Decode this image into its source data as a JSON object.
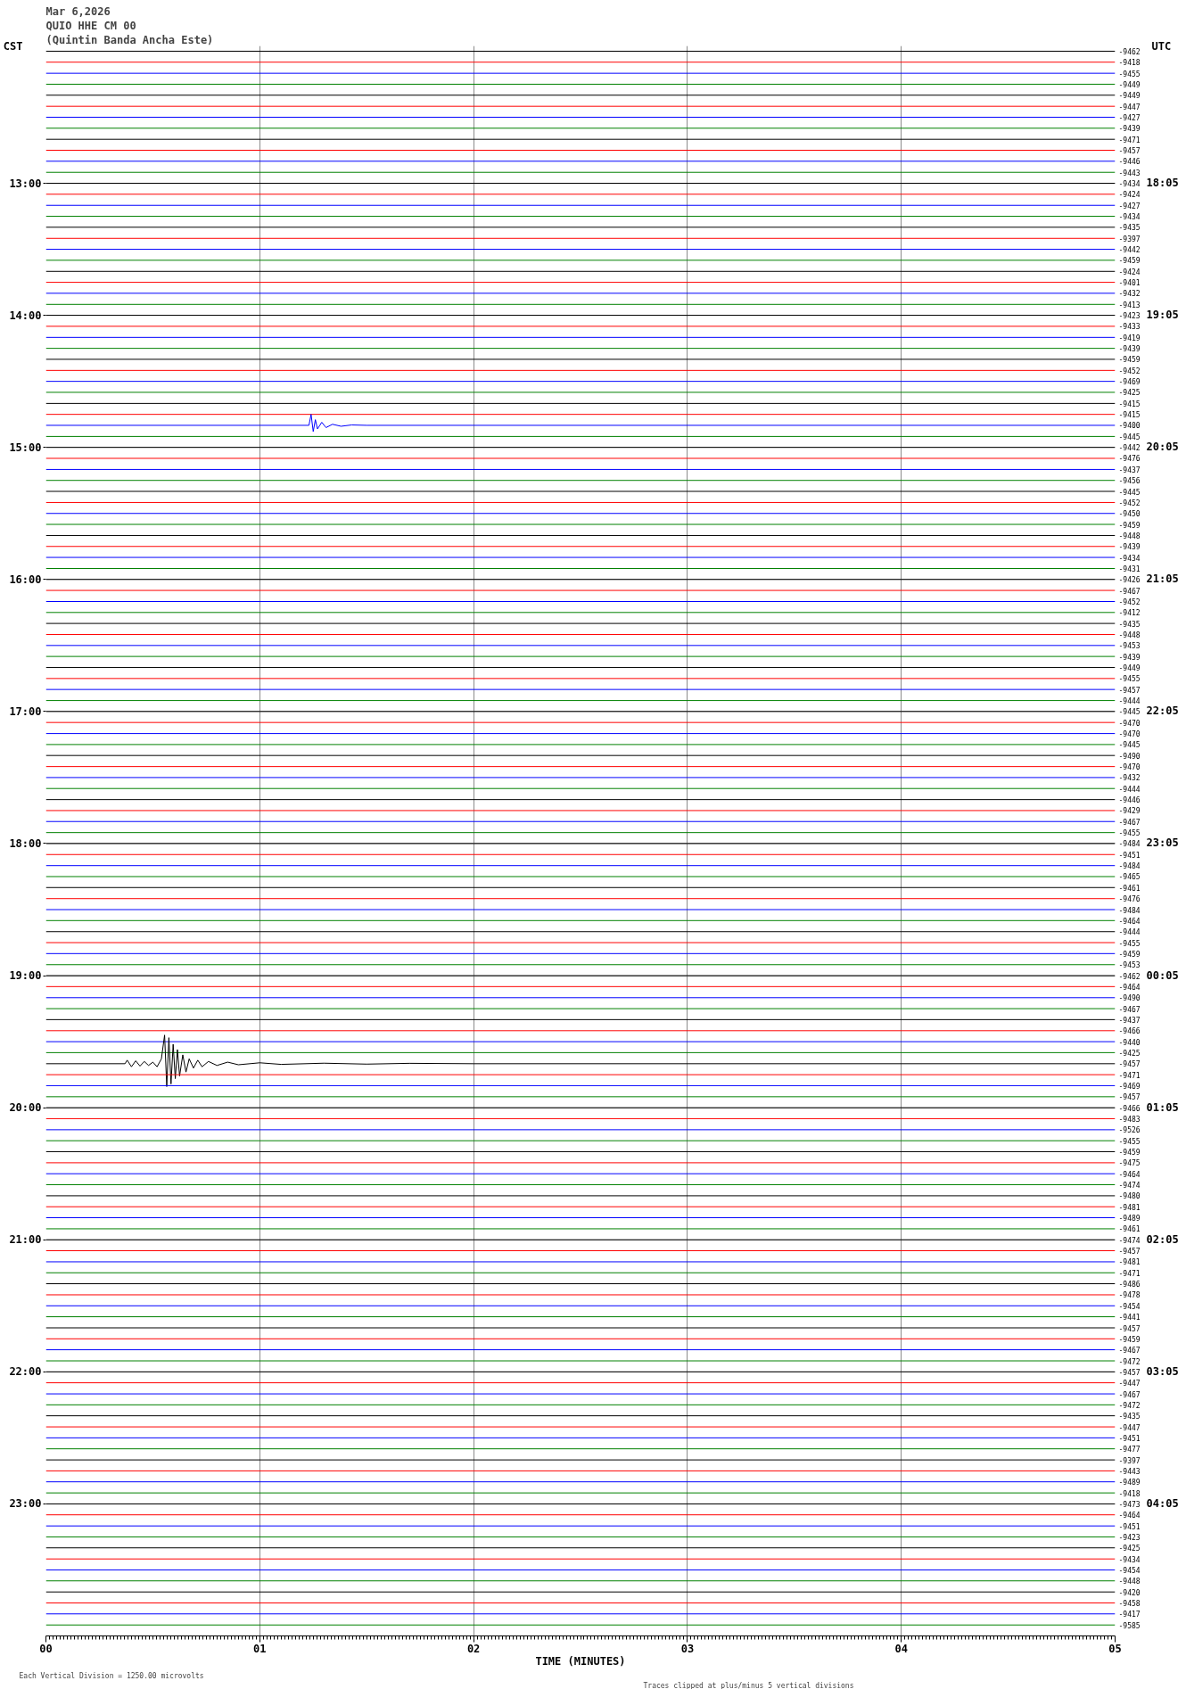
{
  "chart_data": {
    "type": "line",
    "title": "Mar 6,2026",
    "subtitle": "QUIO HHE CM 00",
    "xlabel": "TIME (MINUTES)",
    "ylabel": "CST",
    "y2label": "UTC",
    "annotations": [
      "(Quintin Banda Ancha Este)",
      "Each Vertical Division = 1250.00 microvolts",
      "Traces clipped at plus/minus 5 vertical divisions"
    ],
    "x": [
      0,
      5
    ],
    "xlim": [
      0,
      5
    ],
    "xticks": [
      {
        "value": 0,
        "label": "00"
      },
      {
        "value": 1,
        "label": "01"
      },
      {
        "value": 2,
        "label": "02"
      },
      {
        "value": 3,
        "label": "03"
      },
      {
        "value": 4,
        "label": "04"
      },
      {
        "value": 5,
        "label": "05"
      }
    ],
    "ylim": [
      24.0,
      11.96
    ],
    "yticks": [
      {
        "value": 13,
        "label": "13:00"
      },
      {
        "value": 14,
        "label": "14:00"
      },
      {
        "value": 15,
        "label": "15:00"
      },
      {
        "value": 16,
        "label": "16:00"
      },
      {
        "value": 17,
        "label": "17:00"
      },
      {
        "value": 18,
        "label": "18:00"
      },
      {
        "value": 19,
        "label": "19:00"
      },
      {
        "value": 20,
        "label": "20:00"
      },
      {
        "value": 21,
        "label": "21:00"
      },
      {
        "value": 22,
        "label": "22:00"
      },
      {
        "value": 23,
        "label": "23:00"
      }
    ],
    "y2lim": [
      "2026-03-07T05:05",
      "2026-03-06T17:03"
    ],
    "y2ticks": [
      {
        "value": "2026-03-06T18:05",
        "label": "18:05"
      },
      {
        "value": "2026-03-06T19:05",
        "label": "19:05"
      },
      {
        "value": "2026-03-06T20:05",
        "label": "20:05"
      },
      {
        "value": "2026-03-06T21:05",
        "label": "21:05"
      },
      {
        "value": "2026-03-06T22:05",
        "label": "22:05"
      },
      {
        "value": "2026-03-06T23:05",
        "label": "23:05"
      },
      {
        "value": "2026-03-07T00:05",
        "label": "00:05"
      },
      {
        "value": "2026-03-07T01:05",
        "label": "01:05"
      },
      {
        "value": "2026-03-07T02:05",
        "label": "02:05"
      },
      {
        "value": "2026-03-07T03:05",
        "label": "03:05"
      },
      {
        "value": "2026-03-07T04:05",
        "label": "04:05"
      }
    ],
    "grid": true,
    "series": [
      {
        "name": "-9462",
        "color": "#000000",
        "values": [
          12.0,
          12.0
        ]
      },
      {
        "name": "-9418",
        "color": "#ff0000",
        "values": [
          12.083,
          12.083
        ]
      },
      {
        "name": "-9455",
        "color": "#0000ff",
        "values": [
          12.167,
          12.167
        ]
      },
      {
        "name": "-9449",
        "color": "#008000",
        "values": [
          12.25,
          12.25
        ]
      },
      {
        "name": "-9449",
        "color": "#000000",
        "values": [
          12.333,
          12.333
        ]
      },
      {
        "name": "-9447",
        "color": "#ff0000",
        "values": [
          12.417,
          12.417
        ]
      },
      {
        "name": "-9427",
        "color": "#0000ff",
        "values": [
          12.5,
          12.5
        ]
      },
      {
        "name": "-9439",
        "color": "#008000",
        "values": [
          12.583,
          12.583
        ]
      },
      {
        "name": "-9471",
        "color": "#000000",
        "values": [
          12.667,
          12.667
        ]
      },
      {
        "name": "-9457",
        "color": "#ff0000",
        "values": [
          12.75,
          12.75
        ]
      },
      {
        "name": "-9446",
        "color": "#0000ff",
        "values": [
          12.833,
          12.833
        ]
      },
      {
        "name": "-9443",
        "color": "#008000",
        "values": [
          12.917,
          12.917
        ]
      },
      {
        "name": "-9434",
        "color": "#000000",
        "values": [
          13.0,
          13.0
        ]
      },
      {
        "name": "-9424",
        "color": "#ff0000",
        "values": [
          13.083,
          13.083
        ]
      },
      {
        "name": "-9427",
        "color": "#0000ff",
        "values": [
          13.167,
          13.167
        ]
      },
      {
        "name": "-9434",
        "color": "#008000",
        "values": [
          13.25,
          13.25
        ]
      },
      {
        "name": "-9435",
        "color": "#000000",
        "values": [
          13.333,
          13.333
        ]
      },
      {
        "name": "-9397",
        "color": "#ff0000",
        "values": [
          13.417,
          13.417
        ]
      },
      {
        "name": "-9442",
        "color": "#0000ff",
        "values": [
          13.5,
          13.5
        ]
      },
      {
        "name": "-9459",
        "color": "#008000",
        "values": [
          13.583,
          13.583
        ]
      },
      {
        "name": "-9424",
        "color": "#000000",
        "values": [
          13.667,
          13.667
        ]
      },
      {
        "name": "-9401",
        "color": "#ff0000",
        "values": [
          13.75,
          13.75
        ]
      },
      {
        "name": "-9432",
        "color": "#0000ff",
        "values": [
          13.833,
          13.833
        ]
      },
      {
        "name": "-9413",
        "color": "#008000",
        "values": [
          13.917,
          13.917
        ]
      },
      {
        "name": "-9423",
        "color": "#000000",
        "values": [
          14.0,
          14.0
        ]
      },
      {
        "name": "-9433",
        "color": "#ff0000",
        "values": [
          14.083,
          14.083
        ]
      },
      {
        "name": "-9419",
        "color": "#0000ff",
        "values": [
          14.167,
          14.167
        ]
      },
      {
        "name": "-9439",
        "color": "#008000",
        "values": [
          14.25,
          14.25
        ]
      },
      {
        "name": "-9459",
        "color": "#000000",
        "values": [
          14.333,
          14.333
        ]
      },
      {
        "name": "-9452",
        "color": "#ff0000",
        "values": [
          14.417,
          14.417
        ]
      },
      {
        "name": "-9469",
        "color": "#0000ff",
        "values": [
          14.5,
          14.5
        ]
      },
      {
        "name": "-9425",
        "color": "#008000",
        "values": [
          14.583,
          14.583
        ]
      },
      {
        "name": "-9415",
        "color": "#000000",
        "values": [
          14.667,
          14.667
        ]
      },
      {
        "name": "-9415",
        "color": "#ff0000",
        "values": [
          14.75,
          14.75
        ]
      },
      {
        "name": "-9400",
        "color": "#0000ff",
        "x": [
          0,
          1.23,
          1.24,
          1.25,
          1.26,
          1.27,
          1.29,
          1.31,
          1.34,
          1.38,
          1.43,
          1.5,
          5
        ],
        "values": [
          14.833,
          14.833,
          14.75,
          14.88,
          14.79,
          14.86,
          14.81,
          14.85,
          14.825,
          14.84,
          14.83,
          14.833,
          14.833
        ]
      },
      {
        "name": "-9445",
        "color": "#008000",
        "values": [
          14.917,
          14.917
        ]
      },
      {
        "name": "-9442",
        "color": "#000000",
        "values": [
          15.0,
          15.0
        ]
      },
      {
        "name": "-9476",
        "color": "#ff0000",
        "values": [
          15.083,
          15.083
        ]
      },
      {
        "name": "-9437",
        "color": "#0000ff",
        "values": [
          15.167,
          15.167
        ]
      },
      {
        "name": "-9456",
        "color": "#008000",
        "values": [
          15.25,
          15.25
        ]
      },
      {
        "name": "-9445",
        "color": "#000000",
        "values": [
          15.333,
          15.333
        ]
      },
      {
        "name": "-9452",
        "color": "#ff0000",
        "values": [
          15.417,
          15.417
        ]
      },
      {
        "name": "-9450",
        "color": "#0000ff",
        "values": [
          15.5,
          15.5
        ]
      },
      {
        "name": "-9459",
        "color": "#008000",
        "values": [
          15.583,
          15.583
        ]
      },
      {
        "name": "-9448",
        "color": "#000000",
        "values": [
          15.667,
          15.667
        ]
      },
      {
        "name": "-9439",
        "color": "#ff0000",
        "values": [
          15.75,
          15.75
        ]
      },
      {
        "name": "-9434",
        "color": "#0000ff",
        "values": [
          15.833,
          15.833
        ]
      },
      {
        "name": "-9431",
        "color": "#008000",
        "values": [
          15.917,
          15.917
        ]
      },
      {
        "name": "-9426",
        "color": "#000000",
        "values": [
          16.0,
          16.0
        ]
      },
      {
        "name": "-9467",
        "color": "#ff0000",
        "values": [
          16.083,
          16.083
        ]
      },
      {
        "name": "-9452",
        "color": "#0000ff",
        "values": [
          16.167,
          16.167
        ]
      },
      {
        "name": "-9412",
        "color": "#008000",
        "values": [
          16.25,
          16.25
        ]
      },
      {
        "name": "-9435",
        "color": "#000000",
        "values": [
          16.333,
          16.333
        ]
      },
      {
        "name": "-9448",
        "color": "#ff0000",
        "values": [
          16.417,
          16.417
        ]
      },
      {
        "name": "-9453",
        "color": "#0000ff",
        "values": [
          16.5,
          16.5
        ]
      },
      {
        "name": "-9439",
        "color": "#008000",
        "values": [
          16.583,
          16.583
        ]
      },
      {
        "name": "-9449",
        "color": "#000000",
        "values": [
          16.667,
          16.667
        ]
      },
      {
        "name": "-9455",
        "color": "#ff0000",
        "values": [
          16.75,
          16.75
        ]
      },
      {
        "name": "-9457",
        "color": "#0000ff",
        "values": [
          16.833,
          16.833
        ]
      },
      {
        "name": "-9444",
        "color": "#008000",
        "values": [
          16.917,
          16.917
        ]
      },
      {
        "name": "-9445",
        "color": "#000000",
        "values": [
          17.0,
          17.0
        ]
      },
      {
        "name": "-9470",
        "color": "#ff0000",
        "values": [
          17.083,
          17.083
        ]
      },
      {
        "name": "-9470",
        "color": "#0000ff",
        "values": [
          17.167,
          17.167
        ]
      },
      {
        "name": "-9445",
        "color": "#008000",
        "values": [
          17.25,
          17.25
        ]
      },
      {
        "name": "-9490",
        "color": "#000000",
        "values": [
          17.333,
          17.333
        ]
      },
      {
        "name": "-9470",
        "color": "#ff0000",
        "values": [
          17.417,
          17.417
        ]
      },
      {
        "name": "-9432",
        "color": "#0000ff",
        "values": [
          17.5,
          17.5
        ]
      },
      {
        "name": "-9444",
        "color": "#008000",
        "values": [
          17.583,
          17.583
        ]
      },
      {
        "name": "-9446",
        "color": "#000000",
        "values": [
          17.667,
          17.667
        ]
      },
      {
        "name": "-9429",
        "color": "#ff0000",
        "values": [
          17.75,
          17.75
        ]
      },
      {
        "name": "-9467",
        "color": "#0000ff",
        "values": [
          17.833,
          17.833
        ]
      },
      {
        "name": "-9455",
        "color": "#008000",
        "values": [
          17.917,
          17.917
        ]
      },
      {
        "name": "-9484",
        "color": "#000000",
        "values": [
          18.0,
          18.0
        ]
      },
      {
        "name": "-9451",
        "color": "#ff0000",
        "values": [
          18.083,
          18.083
        ]
      },
      {
        "name": "-9484",
        "color": "#0000ff",
        "values": [
          18.167,
          18.167
        ]
      },
      {
        "name": "-9465",
        "color": "#008000",
        "values": [
          18.25,
          18.25
        ]
      },
      {
        "name": "-9461",
        "color": "#000000",
        "values": [
          18.333,
          18.333
        ]
      },
      {
        "name": "-9476",
        "color": "#ff0000",
        "values": [
          18.417,
          18.417
        ]
      },
      {
        "name": "-9484",
        "color": "#0000ff",
        "values": [
          18.5,
          18.5
        ]
      },
      {
        "name": "-9464",
        "color": "#008000",
        "values": [
          18.583,
          18.583
        ]
      },
      {
        "name": "-9444",
        "color": "#000000",
        "values": [
          18.667,
          18.667
        ]
      },
      {
        "name": "-9455",
        "color": "#ff0000",
        "values": [
          18.75,
          18.75
        ]
      },
      {
        "name": "-9459",
        "color": "#0000ff",
        "values": [
          18.833,
          18.833
        ]
      },
      {
        "name": "-9453",
        "color": "#008000",
        "values": [
          18.917,
          18.917
        ]
      },
      {
        "name": "-9462",
        "color": "#000000",
        "values": [
          19.0,
          19.0
        ]
      },
      {
        "name": "-9464",
        "color": "#ff0000",
        "values": [
          19.083,
          19.083
        ]
      },
      {
        "name": "-9490",
        "color": "#0000ff",
        "values": [
          19.167,
          19.167
        ]
      },
      {
        "name": "-9467",
        "color": "#008000",
        "values": [
          19.25,
          19.25
        ]
      },
      {
        "name": "-9437",
        "color": "#000000",
        "values": [
          19.333,
          19.333
        ]
      },
      {
        "name": "-9466",
        "color": "#ff0000",
        "values": [
          19.417,
          19.417
        ]
      },
      {
        "name": "-9440",
        "color": "#0000ff",
        "values": [
          19.5,
          19.5
        ]
      },
      {
        "name": "-9425",
        "color": "#008000",
        "values": [
          19.583,
          19.583
        ]
      },
      {
        "name": "-9457",
        "color": "#000000",
        "x": [
          0,
          0.37,
          0.38,
          0.4,
          0.42,
          0.44,
          0.46,
          0.48,
          0.5,
          0.52,
          0.54,
          0.555,
          0.565,
          0.575,
          0.585,
          0.595,
          0.605,
          0.615,
          0.625,
          0.64,
          0.655,
          0.67,
          0.69,
          0.71,
          0.73,
          0.76,
          0.8,
          0.85,
          0.9,
          1.0,
          1.1,
          1.3,
          1.5,
          1.7,
          2.0,
          5
        ],
        "values": [
          19.667,
          19.667,
          19.64,
          19.69,
          19.645,
          19.685,
          19.65,
          19.68,
          19.655,
          19.69,
          19.63,
          19.45,
          19.84,
          19.47,
          19.82,
          19.52,
          19.78,
          19.56,
          19.76,
          19.6,
          19.73,
          19.63,
          19.7,
          19.64,
          19.69,
          19.65,
          19.68,
          19.655,
          19.675,
          19.66,
          19.672,
          19.663,
          19.67,
          19.664,
          19.667,
          19.667
        ]
      },
      {
        "name": "-9471",
        "color": "#ff0000",
        "values": [
          19.75,
          19.75
        ]
      },
      {
        "name": "-9469",
        "color": "#0000ff",
        "values": [
          19.833,
          19.833
        ]
      },
      {
        "name": "-9457",
        "color": "#008000",
        "values": [
          19.917,
          19.917
        ]
      },
      {
        "name": "-9466",
        "color": "#000000",
        "values": [
          20.0,
          20.0
        ]
      },
      {
        "name": "-9483",
        "color": "#ff0000",
        "values": [
          20.083,
          20.083
        ]
      },
      {
        "name": "-9526",
        "color": "#0000ff",
        "values": [
          20.167,
          20.167
        ]
      },
      {
        "name": "-9455",
        "color": "#008000",
        "values": [
          20.25,
          20.25
        ]
      },
      {
        "name": "-9459",
        "color": "#000000",
        "values": [
          20.333,
          20.333
        ]
      },
      {
        "name": "-9475",
        "color": "#ff0000",
        "values": [
          20.417,
          20.417
        ]
      },
      {
        "name": "-9464",
        "color": "#0000ff",
        "values": [
          20.5,
          20.5
        ]
      },
      {
        "name": "-9474",
        "color": "#008000",
        "values": [
          20.583,
          20.583
        ]
      },
      {
        "name": "-9480",
        "color": "#000000",
        "values": [
          20.667,
          20.667
        ]
      },
      {
        "name": "-9481",
        "color": "#ff0000",
        "values": [
          20.75,
          20.75
        ]
      },
      {
        "name": "-9489",
        "color": "#0000ff",
        "values": [
          20.833,
          20.833
        ]
      },
      {
        "name": "-9461",
        "color": "#008000",
        "values": [
          20.917,
          20.917
        ]
      },
      {
        "name": "-9474",
        "color": "#000000",
        "values": [
          21.0,
          21.0
        ]
      },
      {
        "name": "-9457",
        "color": "#ff0000",
        "values": [
          21.083,
          21.083
        ]
      },
      {
        "name": "-9481",
        "color": "#0000ff",
        "values": [
          21.167,
          21.167
        ]
      },
      {
        "name": "-9471",
        "color": "#008000",
        "values": [
          21.25,
          21.25
        ]
      },
      {
        "name": "-9486",
        "color": "#000000",
        "values": [
          21.333,
          21.333
        ]
      },
      {
        "name": "-9478",
        "color": "#ff0000",
        "values": [
          21.417,
          21.417
        ]
      },
      {
        "name": "-9454",
        "color": "#0000ff",
        "values": [
          21.5,
          21.5
        ]
      },
      {
        "name": "-9441",
        "color": "#008000",
        "values": [
          21.583,
          21.583
        ]
      },
      {
        "name": "-9457",
        "color": "#000000",
        "values": [
          21.667,
          21.667
        ]
      },
      {
        "name": "-9459",
        "color": "#ff0000",
        "values": [
          21.75,
          21.75
        ]
      },
      {
        "name": "-9467",
        "color": "#0000ff",
        "values": [
          21.833,
          21.833
        ]
      },
      {
        "name": "-9472",
        "color": "#008000",
        "values": [
          21.917,
          21.917
        ]
      },
      {
        "name": "-9457",
        "color": "#000000",
        "values": [
          22.0,
          22.0
        ]
      },
      {
        "name": "-9447",
        "color": "#ff0000",
        "values": [
          22.083,
          22.083
        ]
      },
      {
        "name": "-9467",
        "color": "#0000ff",
        "values": [
          22.167,
          22.167
        ]
      },
      {
        "name": "-9472",
        "color": "#008000",
        "values": [
          22.25,
          22.25
        ]
      },
      {
        "name": "-9435",
        "color": "#000000",
        "values": [
          22.333,
          22.333
        ]
      },
      {
        "name": "-9447",
        "color": "#ff0000",
        "values": [
          22.417,
          22.417
        ]
      },
      {
        "name": "-9451",
        "color": "#0000ff",
        "values": [
          22.5,
          22.5
        ]
      },
      {
        "name": "-9477",
        "color": "#008000",
        "values": [
          22.583,
          22.583
        ]
      },
      {
        "name": "-9397",
        "color": "#000000",
        "values": [
          22.667,
          22.667
        ]
      },
      {
        "name": "-9443",
        "color": "#ff0000",
        "values": [
          22.75,
          22.75
        ]
      },
      {
        "name": "-9489",
        "color": "#0000ff",
        "values": [
          22.833,
          22.833
        ]
      },
      {
        "name": "-9418",
        "color": "#008000",
        "values": [
          22.917,
          22.917
        ]
      },
      {
        "name": "-9473",
        "color": "#000000",
        "values": [
          23.0,
          23.0
        ]
      },
      {
        "name": "-9464",
        "color": "#ff0000",
        "values": [
          23.083,
          23.083
        ]
      },
      {
        "name": "-9451",
        "color": "#0000ff",
        "values": [
          23.167,
          23.167
        ]
      },
      {
        "name": "-9423",
        "color": "#008000",
        "values": [
          23.25,
          23.25
        ]
      },
      {
        "name": "-9425",
        "color": "#000000",
        "values": [
          23.333,
          23.333
        ]
      },
      {
        "name": "-9434",
        "color": "#ff0000",
        "values": [
          23.417,
          23.417
        ]
      },
      {
        "name": "-9454",
        "color": "#0000ff",
        "values": [
          23.5,
          23.5
        ]
      },
      {
        "name": "-9448",
        "color": "#008000",
        "values": [
          23.583,
          23.583
        ]
      },
      {
        "name": "-9420",
        "color": "#000000",
        "values": [
          23.667,
          23.667
        ]
      },
      {
        "name": "-9458",
        "color": "#ff0000",
        "values": [
          23.75,
          23.75
        ]
      },
      {
        "name": "-9417",
        "color": "#0000ff",
        "values": [
          23.833,
          23.833
        ]
      },
      {
        "name": "-9585",
        "color": "#008000",
        "values": [
          23.917,
          23.917
        ]
      }
    ]
  }
}
